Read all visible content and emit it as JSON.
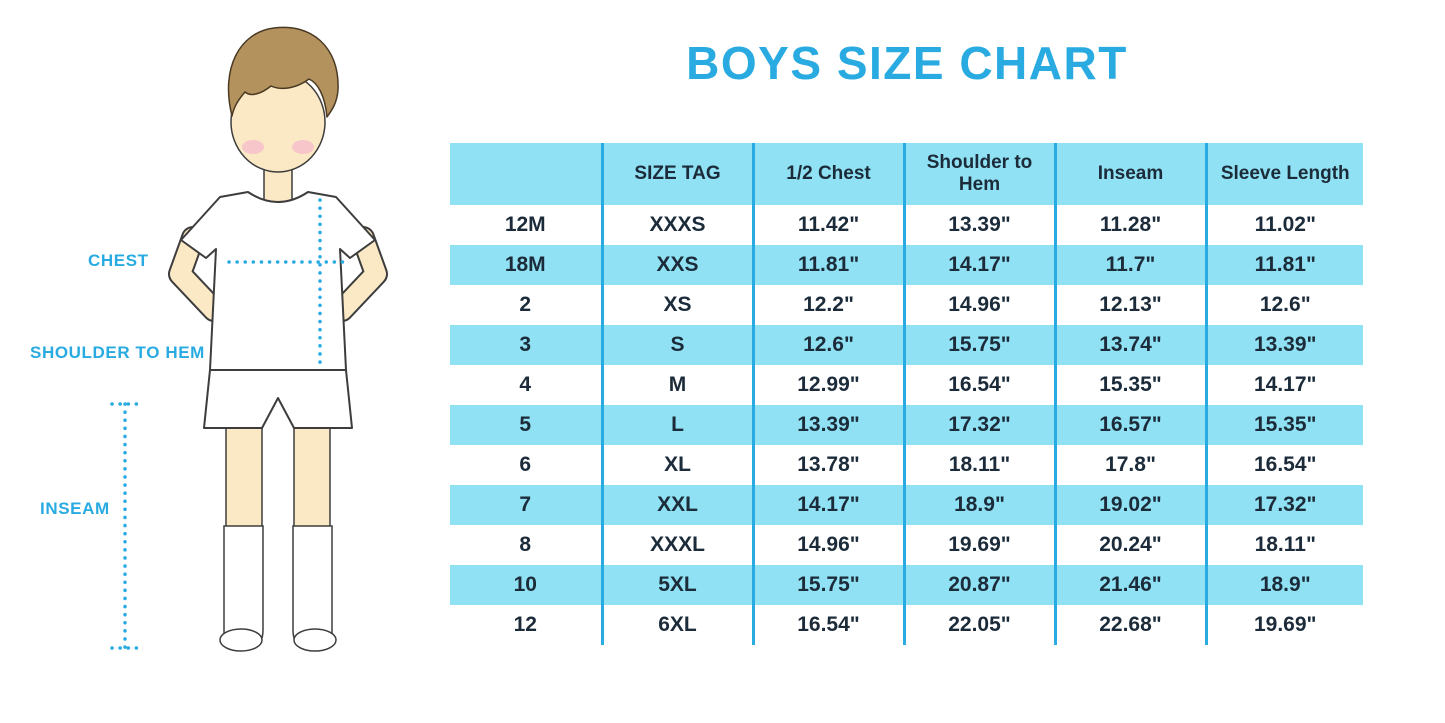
{
  "title": "BOYS SIZE CHART",
  "figure": {
    "labels": {
      "chest": "CHEST",
      "shoulder_to_hem": "SHOULDER TO HEM",
      "inseam": "INSEAM"
    }
  },
  "chart_data": {
    "type": "table",
    "title": "BOYS SIZE CHART",
    "columns": [
      "",
      "SIZE TAG",
      "1/2 Chest",
      "Shoulder to Hem",
      "Inseam",
      "Sleeve Length"
    ],
    "rows": [
      [
        "12M",
        "XXXS",
        "11.42\"",
        "13.39\"",
        "11.28\"",
        "11.02\""
      ],
      [
        "18M",
        "XXS",
        "11.81\"",
        "14.17\"",
        "11.7\"",
        "11.81\""
      ],
      [
        "2",
        "XS",
        "12.2\"",
        "14.96\"",
        "12.13\"",
        "12.6\""
      ],
      [
        "3",
        "S",
        "12.6\"",
        "15.75\"",
        "13.74\"",
        "13.39\""
      ],
      [
        "4",
        "M",
        "12.99\"",
        "16.54\"",
        "15.35\"",
        "14.17\""
      ],
      [
        "5",
        "L",
        "13.39\"",
        "17.32\"",
        "16.57\"",
        "15.35\""
      ],
      [
        "6",
        "XL",
        "13.78\"",
        "18.11\"",
        "17.8\"",
        "16.54\""
      ],
      [
        "7",
        "XXL",
        "14.17\"",
        "18.9\"",
        "19.02\"",
        "17.32\""
      ],
      [
        "8",
        "XXXL",
        "14.96\"",
        "19.69\"",
        "20.24\"",
        "18.11\""
      ],
      [
        "10",
        "5XL",
        "15.75\"",
        "20.87\"",
        "21.46\"",
        "18.9\""
      ],
      [
        "12",
        "6XL",
        "16.54\"",
        "22.05\"",
        "22.68\"",
        "19.69\""
      ]
    ]
  },
  "colors": {
    "accent": "#29ABE2",
    "row_highlight": "#8FE1F3",
    "text_dark": "#1C2B39"
  }
}
